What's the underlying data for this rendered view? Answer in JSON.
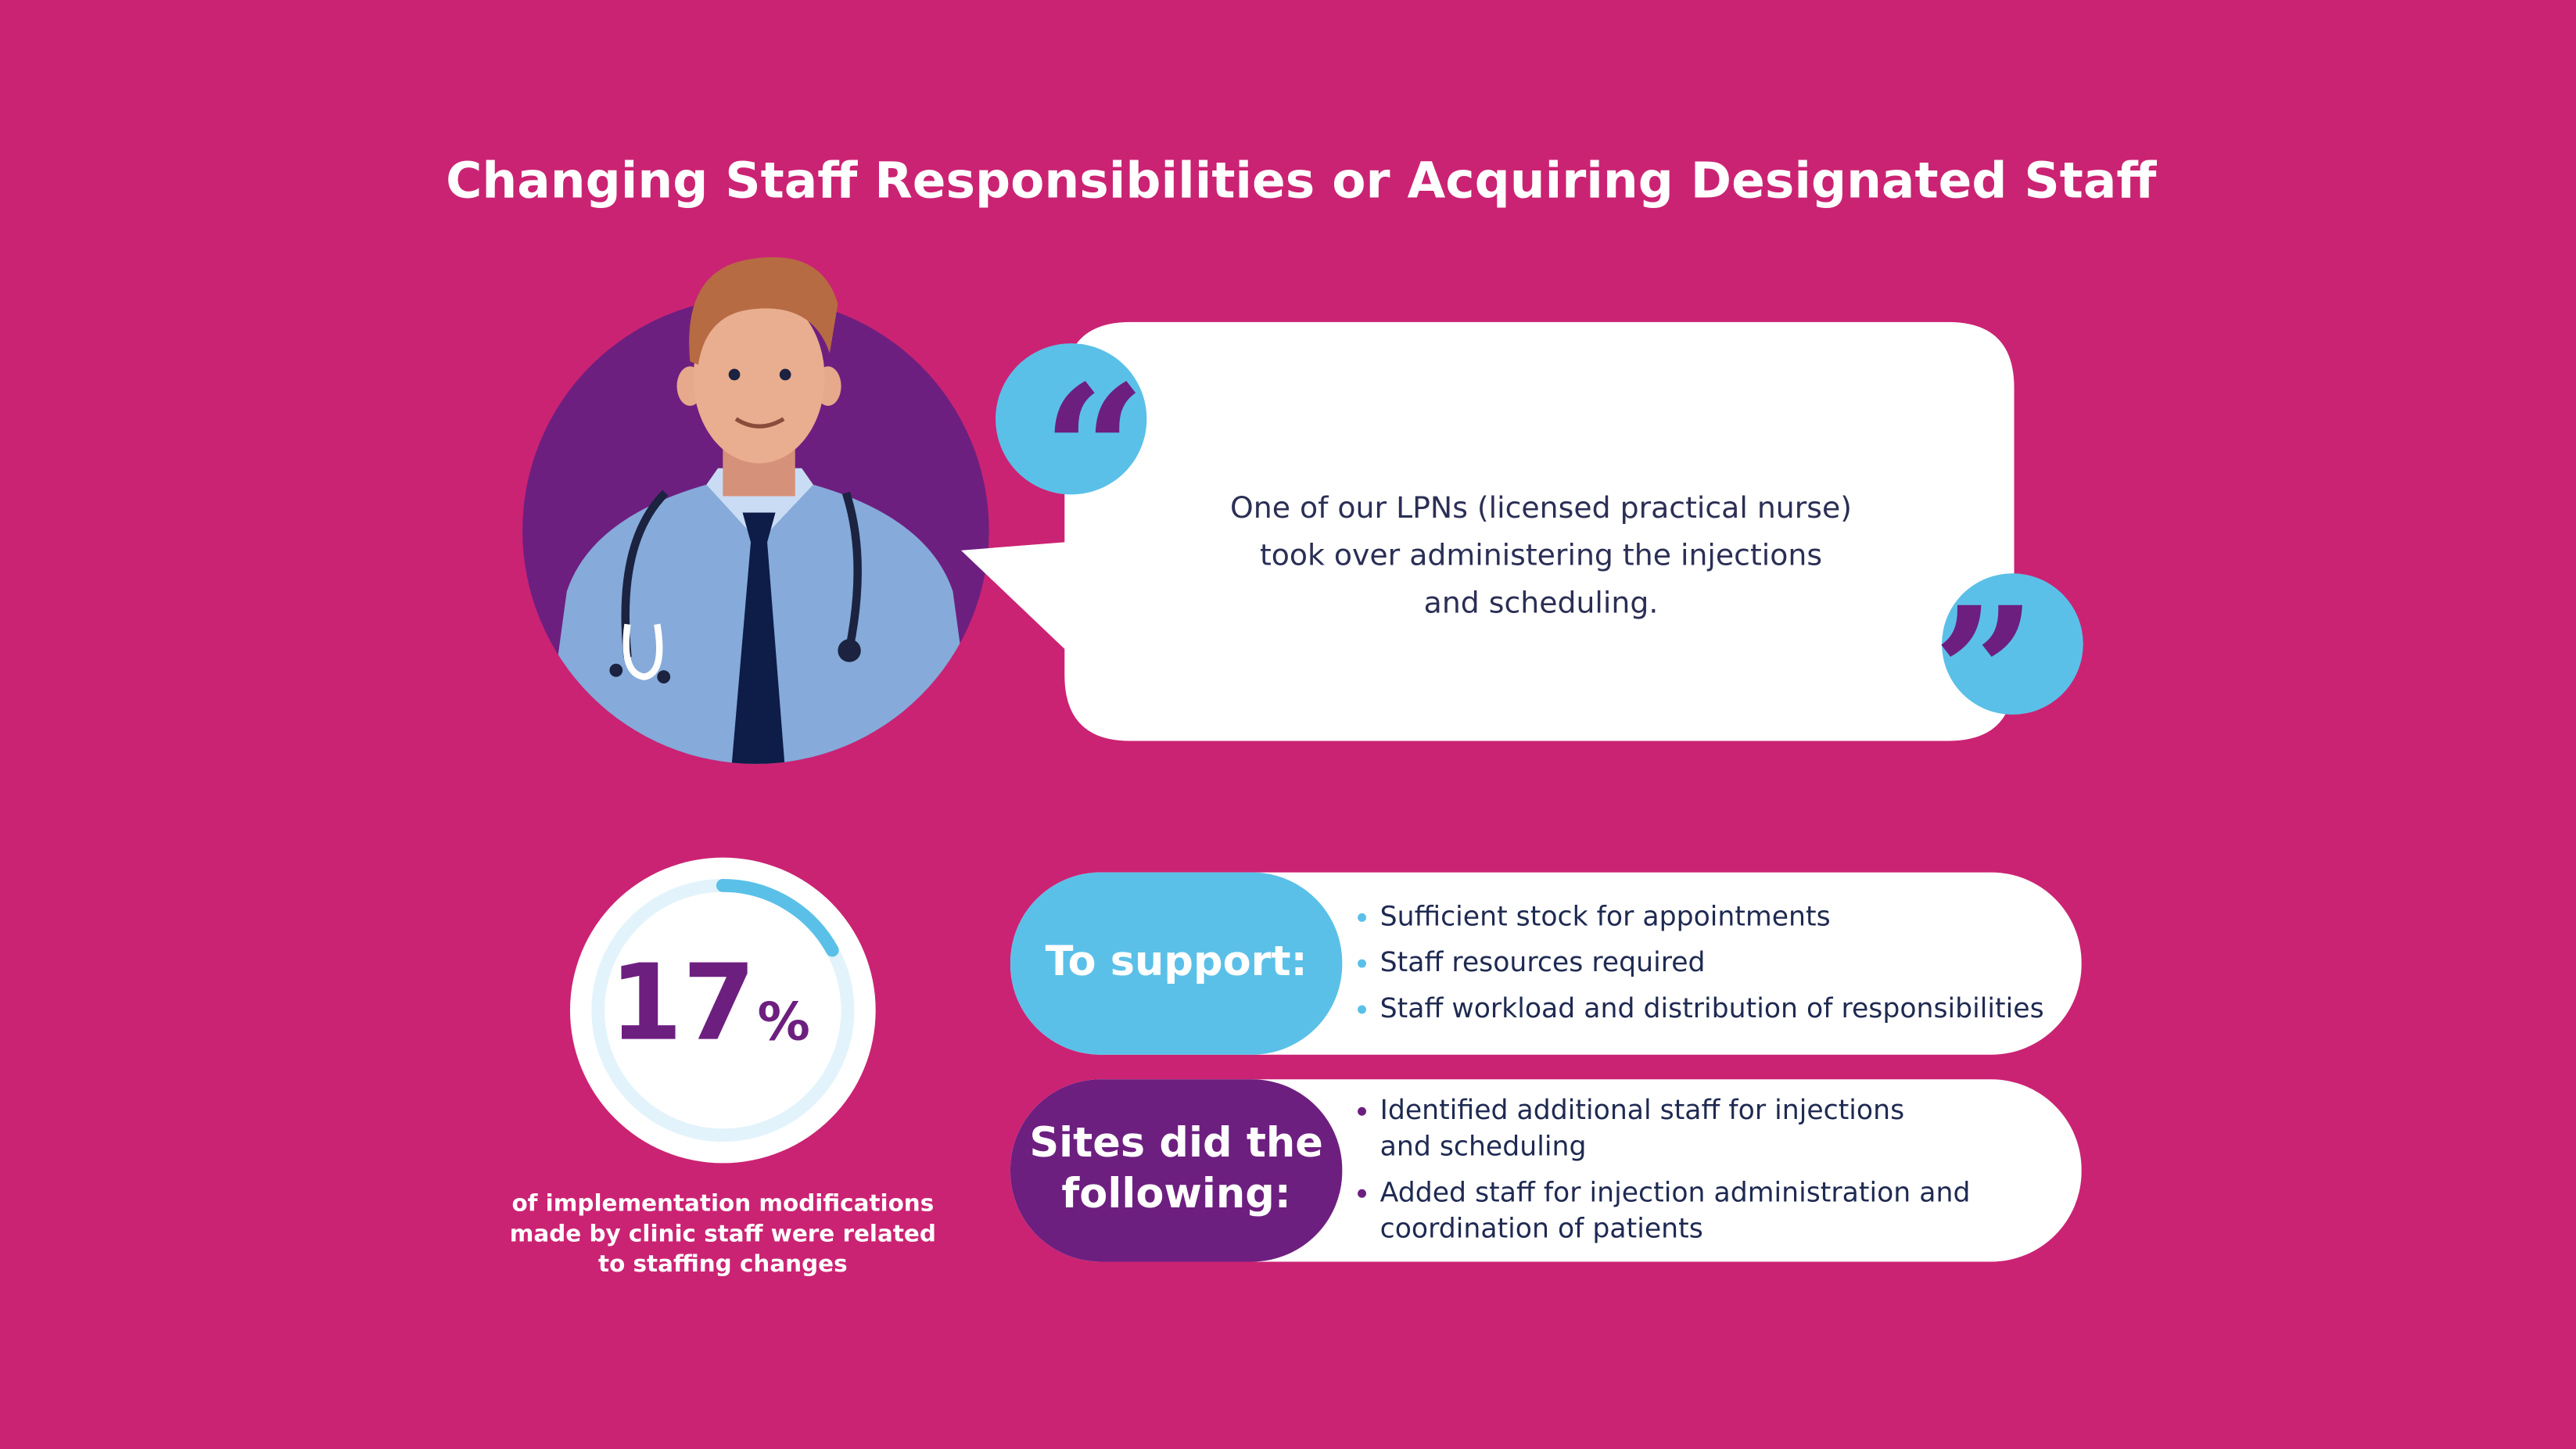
{
  "title": "Changing Staff Responsibilities or Acquiring Designated Staff",
  "quote": {
    "open": "“",
    "close": "”",
    "lines": [
      "One of our LPNs (licensed practical nurse)",
      "took over administering the injections",
      "and scheduling."
    ]
  },
  "stat": {
    "value": 17,
    "unit": "%",
    "caption": [
      "of implementation modifications",
      "made by clinic staff were related",
      "to staffing changes"
    ]
  },
  "panels": [
    {
      "label": [
        "To support:"
      ],
      "items": [
        [
          "Sufficient stock for appointments"
        ],
        [
          "Staff resources required"
        ],
        [
          "Staff workload and distribution of responsibilities"
        ]
      ]
    },
    {
      "label": [
        "Sites did the",
        "following:"
      ],
      "items": [
        [
          "Identified additional staff for injections",
          "and scheduling"
        ],
        [
          "Added staff for injection administration and",
          "coordination of patients"
        ]
      ]
    }
  ]
}
